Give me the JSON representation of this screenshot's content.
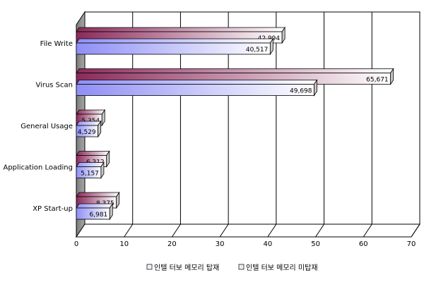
{
  "chart_data": {
    "type": "bar",
    "orientation": "horizontal",
    "categories": [
      "File Write",
      "Virus Scan",
      "General Usage",
      "Application Loading",
      "XP Start-up"
    ],
    "series": [
      {
        "name": "인텔 터보 메모리 미탑재",
        "values": [
          42.994,
          65.671,
          5.354,
          6.312,
          8.375
        ],
        "labels": [
          "42,994",
          "65,671",
          "5,354",
          "6,312",
          "8,375"
        ],
        "color": "#8b2a5a"
      },
      {
        "name": "인텔 터보 메모리 탑재",
        "values": [
          40.517,
          49.698,
          4.529,
          5.157,
          6.981
        ],
        "labels": [
          "40,517",
          "49,698",
          "4,529",
          "5,157",
          "6,981"
        ],
        "color": "#8f8ff5"
      }
    ],
    "xlim": [
      0,
      70
    ],
    "xticks": [
      "0",
      "10",
      "20",
      "30",
      "40",
      "50",
      "60",
      "70"
    ],
    "grid": true,
    "three_d": true,
    "legend_position": "bottom",
    "legend_order": [
      1,
      0
    ]
  }
}
